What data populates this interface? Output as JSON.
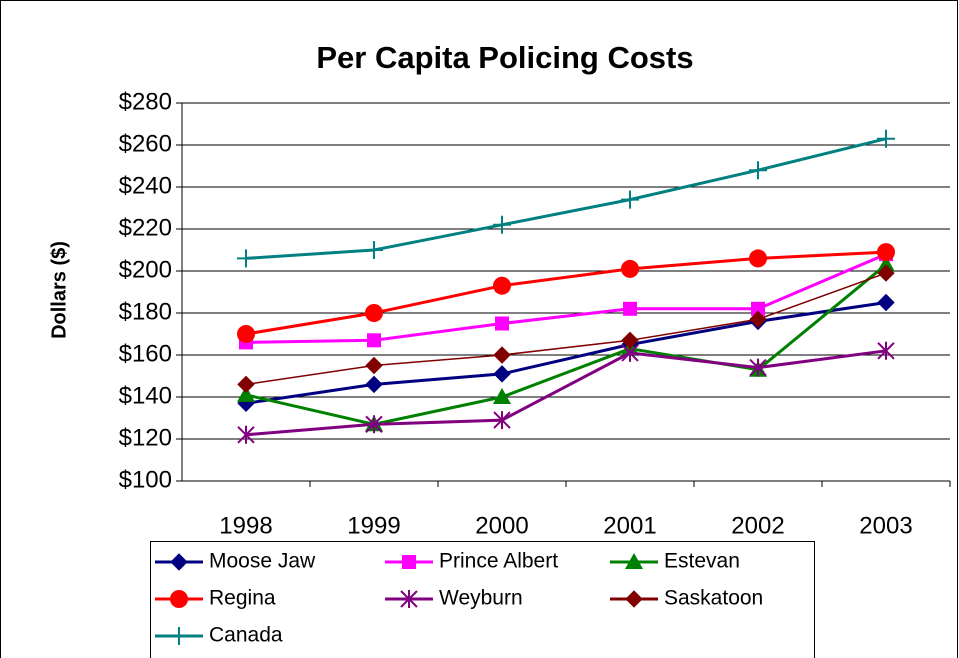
{
  "chart_data": {
    "type": "line",
    "title": "Per Capita Policing Costs",
    "y_label": "Dollars ($)",
    "categories": [
      "1998",
      "1999",
      "2000",
      "2001",
      "2002",
      "2003"
    ],
    "ylim": [
      100,
      280
    ],
    "yticks": [
      {
        "value": 100,
        "label": "$100"
      },
      {
        "value": 120,
        "label": "$120"
      },
      {
        "value": 140,
        "label": "$140"
      },
      {
        "value": 160,
        "label": "$160"
      },
      {
        "value": 180,
        "label": "$180"
      },
      {
        "value": 200,
        "label": "$200"
      },
      {
        "value": 220,
        "label": "$220"
      },
      {
        "value": 240,
        "label": "$240"
      },
      {
        "value": 260,
        "label": "$260"
      },
      {
        "value": 280,
        "label": "$280"
      }
    ],
    "grid": true,
    "series": [
      {
        "name": "Moose Jaw",
        "color": "#000080",
        "marker": "diamond",
        "values": [
          137,
          146,
          151,
          165,
          176,
          185
        ]
      },
      {
        "name": "Prince Albert",
        "color": "#ff00ff",
        "marker": "square",
        "values": [
          166,
          167,
          175,
          182,
          182,
          208
        ]
      },
      {
        "name": "Estevan",
        "color": "#008000",
        "marker": "triangle",
        "values": [
          141,
          127,
          140,
          163,
          153,
          203
        ]
      },
      {
        "name": "Regina",
        "color": "#ff0000",
        "marker": "circle",
        "values": [
          170,
          180,
          193,
          201,
          206,
          209
        ]
      },
      {
        "name": "Weyburn",
        "color": "#800080",
        "marker": "asterisk",
        "values": [
          122,
          127,
          129,
          161,
          154,
          162
        ]
      },
      {
        "name": "Saskatoon",
        "color": "#800000",
        "marker": "diamond",
        "values": [
          146,
          155,
          160,
          167,
          177,
          199
        ]
      },
      {
        "name": "Canada",
        "color": "#008080",
        "marker": "plus",
        "values": [
          206,
          210,
          222,
          234,
          248,
          263
        ]
      }
    ]
  }
}
